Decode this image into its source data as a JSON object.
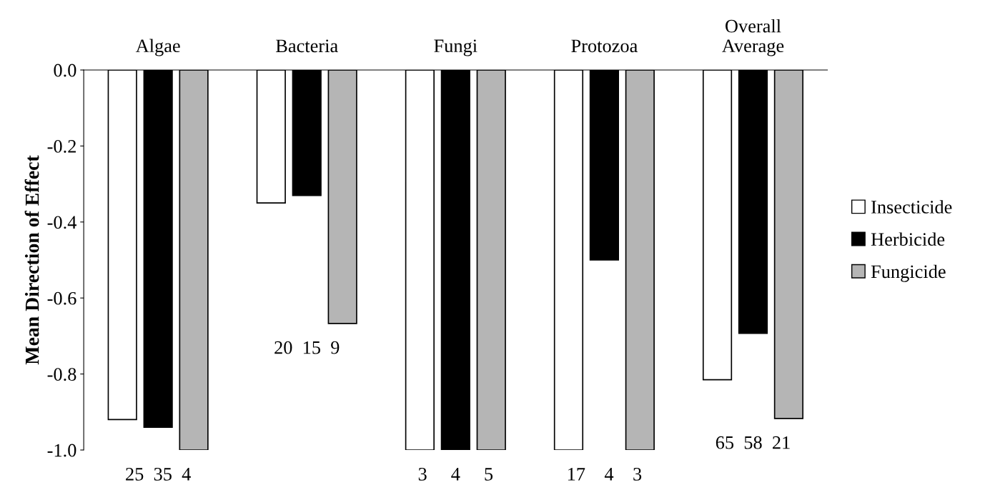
{
  "chart_data": {
    "type": "bar",
    "ylabel": "Mean Direction of Effect",
    "categories": [
      "Algae",
      "Bacteria",
      "Fungi",
      "Protozoa",
      "Overall Average"
    ],
    "series": [
      {
        "name": "Insecticide",
        "color": "#ffffff",
        "values": [
          -0.92,
          -0.35,
          -1.0,
          -1.0,
          -0.815
        ]
      },
      {
        "name": "Herbicide",
        "color": "#000000",
        "values": [
          -0.94,
          -0.33,
          -1.0,
          -0.5,
          -0.693
        ]
      },
      {
        "name": "Fungicide",
        "color": "#b5b5b5",
        "values": [
          -1.0,
          -0.667,
          -1.0,
          -1.0,
          -0.917
        ]
      }
    ],
    "ylim": [
      -1.0,
      0.0
    ],
    "yticks": [
      {
        "value": -1.0,
        "label": "-1.0"
      },
      {
        "value": -0.8,
        "label": "-0.8"
      },
      {
        "value": -0.6,
        "label": "-0.6"
      },
      {
        "value": -0.4,
        "label": "-0.4"
      },
      {
        "value": -0.2,
        "label": "-0.2"
      },
      {
        "value": 0.0,
        "label": "0.0"
      }
    ],
    "annotations": [
      "25  35  4",
      "20  15  9",
      "3     4     5",
      "17    4    3",
      "65  58  21"
    ],
    "grid": false,
    "legend": "right"
  }
}
